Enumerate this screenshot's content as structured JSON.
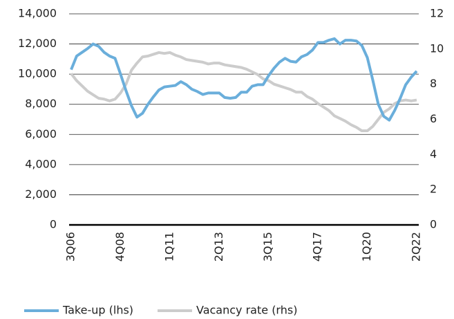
{
  "chart_data": {
    "type": "line",
    "categories": [
      "3Q06",
      null,
      null,
      null,
      null,
      null,
      null,
      null,
      null,
      "4Q08",
      null,
      null,
      null,
      null,
      null,
      null,
      null,
      null,
      "1Q11",
      null,
      null,
      null,
      null,
      null,
      null,
      null,
      null,
      "2Q13",
      null,
      null,
      null,
      null,
      null,
      null,
      null,
      null,
      "3Q15",
      null,
      null,
      null,
      null,
      null,
      null,
      null,
      null,
      "4Q17",
      null,
      null,
      null,
      null,
      null,
      null,
      null,
      null,
      "1Q20",
      null,
      null,
      null,
      null,
      null,
      null,
      null,
      null,
      "2Q22"
    ],
    "series": [
      {
        "name": "Take-up (lhs)",
        "color": "#6aaedb",
        "axis": "y",
        "values": [
          10300,
          11200,
          11450,
          11700,
          12000,
          11850,
          11450,
          11200,
          11050,
          10000,
          8900,
          7900,
          7150,
          7400,
          8000,
          8500,
          8950,
          9150,
          9200,
          9250,
          9500,
          9300,
          9000,
          8850,
          8650,
          8750,
          8750,
          8750,
          8450,
          8400,
          8450,
          8800,
          8800,
          9200,
          9300,
          9300,
          9900,
          10400,
          10800,
          11050,
          10850,
          10800,
          11150,
          11300,
          11600,
          12100,
          12100,
          12250,
          12350,
          12000,
          12250,
          12250,
          12200,
          11900,
          11100,
          9600,
          8000,
          7200,
          6950,
          7600,
          8400,
          9300,
          9800,
          10200
        ]
      },
      {
        "name": "Vacancy rate (rhs)",
        "color": "#cccccc",
        "axis": "y2",
        "values": [
          8.6,
          8.2,
          7.9,
          7.6,
          7.4,
          7.2,
          7.15,
          7.05,
          7.15,
          7.5,
          8.0,
          8.8,
          9.2,
          9.55,
          9.6,
          9.7,
          9.8,
          9.75,
          9.8,
          9.65,
          9.55,
          9.4,
          9.35,
          9.3,
          9.25,
          9.15,
          9.2,
          9.2,
          9.1,
          9.05,
          9.0,
          8.95,
          8.85,
          8.7,
          8.55,
          8.3,
          8.2,
          8.0,
          7.9,
          7.8,
          7.7,
          7.55,
          7.55,
          7.3,
          7.15,
          6.9,
          6.7,
          6.5,
          6.2,
          6.05,
          5.9,
          5.7,
          5.55,
          5.35,
          5.35,
          5.6,
          6.0,
          6.4,
          6.6,
          6.9,
          7.05,
          7.1,
          7.05,
          7.1
        ]
      }
    ],
    "ylim": [
      0,
      14000
    ],
    "yticks": [
      0,
      {
        "value": 2000,
        "label": "2,000"
      },
      {
        "value": 4000,
        "label": "4,000"
      },
      {
        "value": 6000,
        "label": "6,000"
      },
      {
        "value": 8000,
        "label": "8,000"
      },
      {
        "value": 10000,
        "label": "10,000"
      },
      {
        "value": 12000,
        "label": "12,000"
      },
      {
        "value": 14000,
        "label": "14,000"
      }
    ],
    "y2lim": [
      0,
      12
    ],
    "y2ticks": [
      0,
      2,
      4,
      6,
      8,
      10,
      12
    ],
    "grid": true,
    "legend": "bottom"
  }
}
